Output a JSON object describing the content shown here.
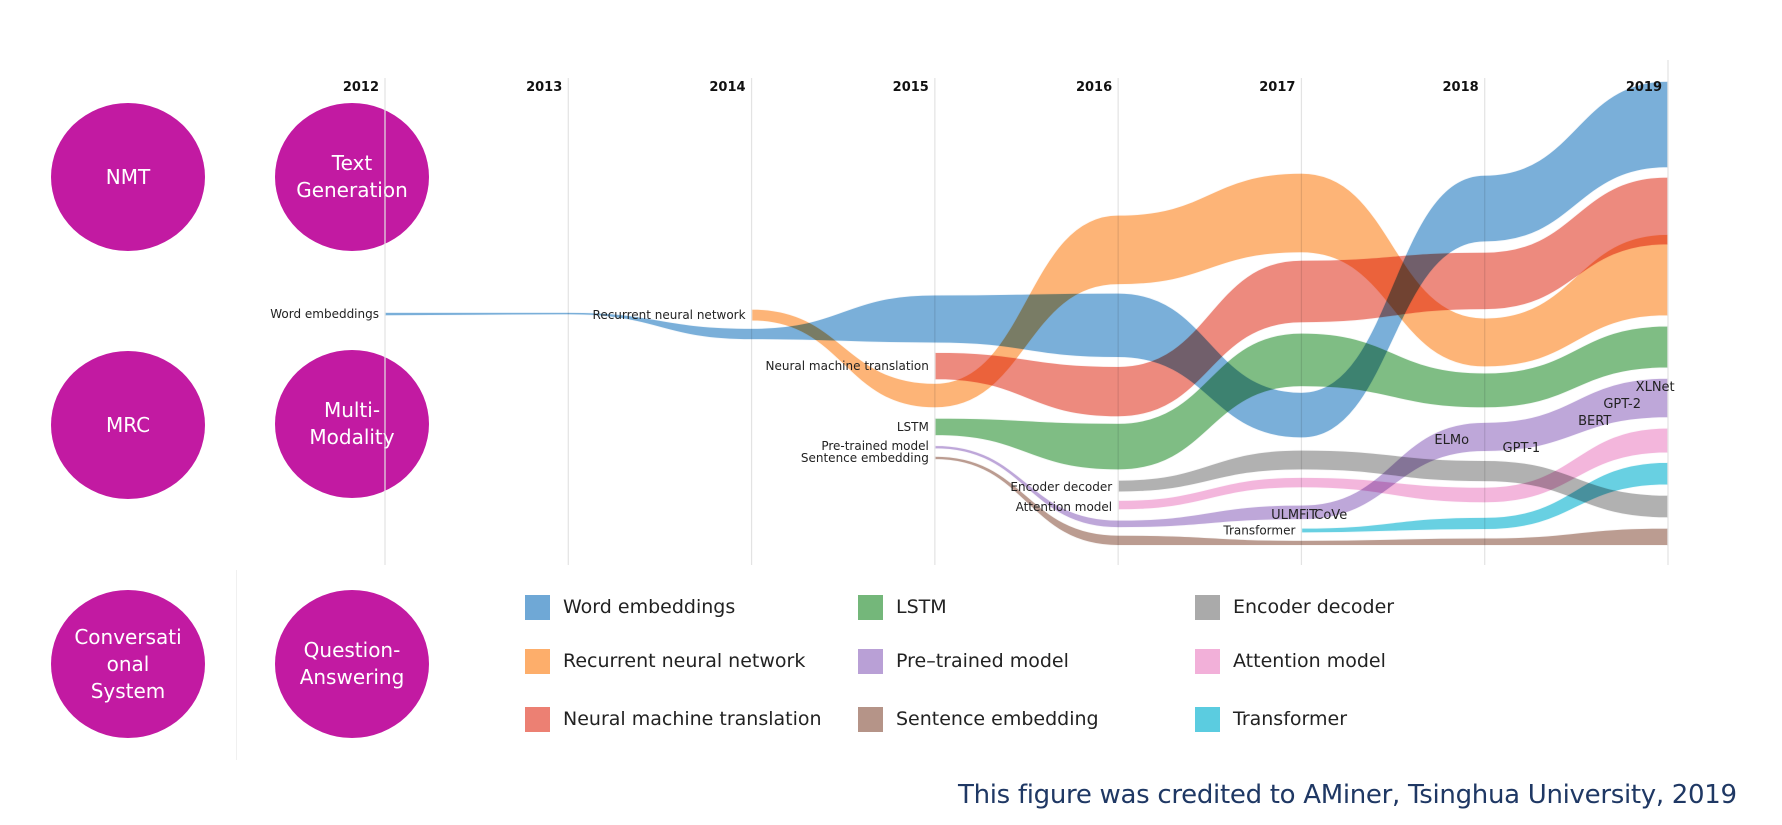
{
  "topics": [
    {
      "label": "NMT"
    },
    {
      "label": "Text\nGeneration"
    },
    {
      "label": "MRC"
    },
    {
      "label": "Multi-\nModality"
    },
    {
      "label": "Conversati\nonal\nSystem"
    },
    {
      "label": "Question-\nAnswering"
    }
  ],
  "chart_data": {
    "type": "area",
    "subtype": "streamgraph",
    "title": "",
    "xlabel": "",
    "ylabel": "",
    "x": [
      2012,
      2013,
      2014,
      2015,
      2016,
      2017,
      2018,
      2019
    ],
    "xlim": [
      2012,
      2019
    ],
    "ylim": [
      0,
      100
    ],
    "y_note": "relative vertical position (0 = top, 100 = bottom); band thickness = relative popularity",
    "grid": true,
    "legend_position": "bottom",
    "series": [
      {
        "name": "Word embeddings",
        "color": "#6fa8d6",
        "start_label": "Word embeddings",
        "x": [
          2012,
          2013,
          2014,
          2015,
          2016,
          2017,
          2018,
          2019
        ],
        "top": [
          49.4,
          49.4,
          52.8,
          45.7,
          45.3,
          66.4,
          20.2,
          0.2
        ],
        "bottom": [
          50.2,
          50.0,
          55.3,
          56.0,
          59.1,
          76.2,
          34.5,
          18.7
        ]
      },
      {
        "name": "Recurrent neural network",
        "color": "#fdae6b",
        "start_label": "Recurrent neural network",
        "x": [
          2014,
          2015,
          2016,
          2017,
          2018,
          2019
        ],
        "top": [
          48.7,
          64.5,
          28.7,
          19.8,
          50.6,
          32.8
        ],
        "bottom": [
          51.3,
          69.8,
          43.6,
          36.8,
          61.1,
          50.2
        ]
      },
      {
        "name": "Neural machine translation",
        "color": "#ec8073",
        "start_label": "Neural machine translation",
        "x": [
          2015,
          2016,
          2017,
          2018,
          2019
        ],
        "top": [
          57.9,
          60.9,
          38.3,
          36.6,
          20.6
        ],
        "bottom": [
          63.8,
          71.7,
          51.7,
          48.9,
          35.1
        ]
      },
      {
        "name": "LSTM",
        "color": "#74b77a",
        "start_label": "LSTM",
        "x": [
          2015,
          2016,
          2017,
          2018,
          2019
        ],
        "top": [
          71.9,
          73.0,
          53.8,
          62.3,
          52.3
        ],
        "bottom": [
          75.7,
          83.0,
          65.3,
          69.8,
          61.3
        ]
      },
      {
        "name": "Pre-trained model",
        "color": "#b9a0d6",
        "start_label": "Pre-trained model",
        "x": [
          2015,
          2016,
          2017,
          2018,
          2019
        ],
        "top": [
          77.7,
          93.6,
          90.4,
          72.8,
          63.4
        ],
        "bottom": [
          78.5,
          95.3,
          93.6,
          79.1,
          71.9
        ]
      },
      {
        "name": "Sentence embedding",
        "color": "#b59488",
        "start_label": "Sentence embedding",
        "x": [
          2015,
          2016,
          2017,
          2018,
          2019
        ],
        "top": [
          80.0,
          96.8,
          97.9,
          97.4,
          95.3
        ],
        "bottom": [
          80.8,
          99.1,
          99.1,
          99.1,
          99.1
        ]
      },
      {
        "name": "Encoder decoder",
        "color": "#aaaaaa",
        "start_label": "Encoder decoder",
        "x": [
          2016,
          2017,
          2018,
          2019
        ],
        "top": [
          85.1,
          78.7,
          80.9,
          88.3
        ],
        "bottom": [
          87.7,
          83.0,
          85.5,
          93.2
        ]
      },
      {
        "name": "Attention model",
        "color": "#f2b0d9",
        "start_label": "Attention model",
        "x": [
          2016,
          2017,
          2018,
          2019
        ],
        "top": [
          89.4,
          84.5,
          86.6,
          74.0
        ],
        "bottom": [
          91.5,
          86.8,
          90.0,
          79.4
        ]
      },
      {
        "name": "Transformer",
        "color": "#5bcce0",
        "start_label": "Transformer",
        "x": [
          2017,
          2018,
          2019
        ],
        "top": [
          95.3,
          93.0,
          81.3
        ],
        "bottom": [
          96.4,
          95.7,
          86.2
        ]
      }
    ],
    "annotations": [
      {
        "text": "ULMFiT",
        "x": 2016.96,
        "series": "Pre-trained model"
      },
      {
        "text": "CoVe",
        "x": 2017.16,
        "series": "Pre-trained model"
      },
      {
        "text": "ELMo",
        "x": 2017.82,
        "series": "Pre-trained model"
      },
      {
        "text": "GPT-1",
        "x": 2018.2,
        "series": "Pre-trained model"
      },
      {
        "text": "BERT",
        "x": 2018.6,
        "series": "Pre-trained model"
      },
      {
        "text": "GPT-2",
        "x": 2018.75,
        "series": "Pre-trained model"
      },
      {
        "text": "XLNet",
        "x": 2018.93,
        "series": "Pre-trained model"
      }
    ]
  },
  "legend": [
    {
      "label": "Word embeddings",
      "color": "#6fa8d6"
    },
    {
      "label": "Recurrent neural network",
      "color": "#fdae6b"
    },
    {
      "label": "Neural machine translation",
      "color": "#ec8073"
    },
    {
      "label": "LSTM",
      "color": "#74b77a"
    },
    {
      "label": "Pre–trained model",
      "color": "#b9a0d6"
    },
    {
      "label": "Sentence embedding",
      "color": "#b59488"
    },
    {
      "label": "Encoder decoder",
      "color": "#aaaaaa"
    },
    {
      "label": "Attention model",
      "color": "#f2b0d9"
    },
    {
      "label": "Transformer",
      "color": "#5bcce0"
    }
  ],
  "credit": "This figure was credited to AMiner, Tsinghua University, 2019",
  "colors": {
    "topic_circle": "#c21aa2",
    "credit_text": "#1f3864"
  }
}
